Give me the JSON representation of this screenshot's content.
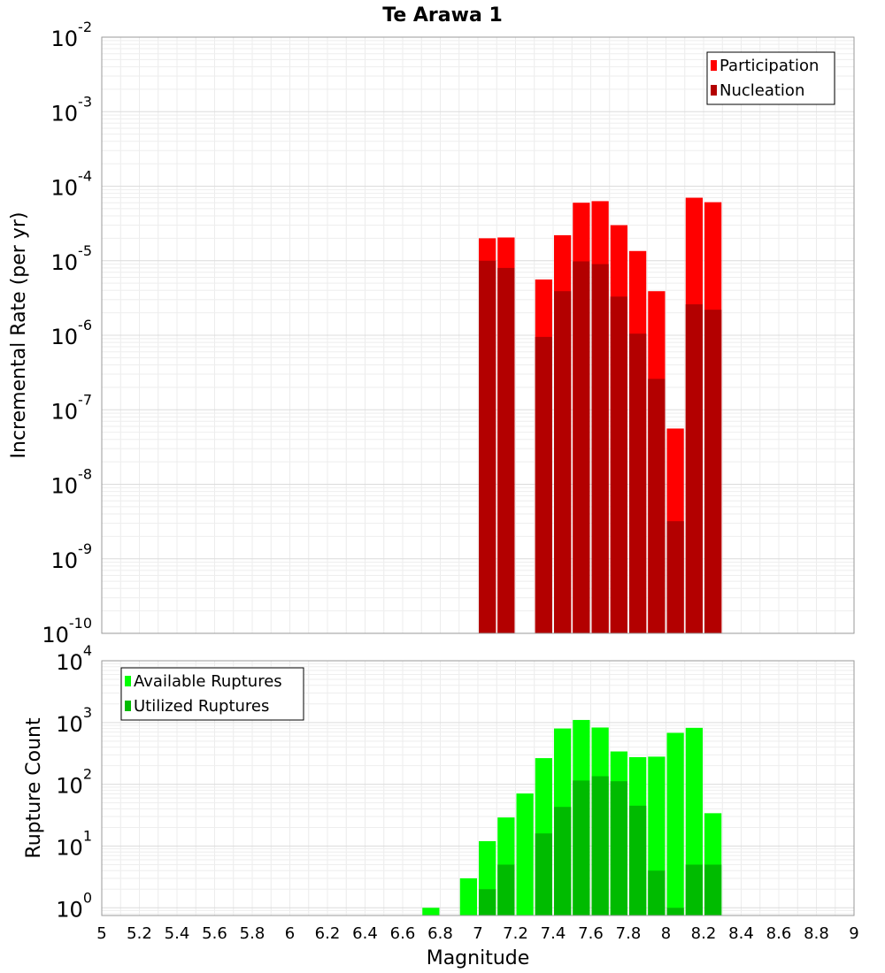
{
  "chart_data": [
    {
      "type": "bar",
      "title": "Te Arawa 1",
      "xlabel": "",
      "ylabel": "Incremental Rate (per yr)",
      "yscale": "log",
      "xlim": [
        5,
        9
      ],
      "ylim": [
        1e-10,
        0.01
      ],
      "bar_width": 0.1,
      "grid": true,
      "legend": "top-right",
      "y_tick_exponents": [
        -10,
        -9,
        -8,
        -7,
        -6,
        -5,
        -4,
        -3,
        -2
      ],
      "series": [
        {
          "name": "Participation",
          "color": "#ff0000",
          "x": [
            7.05,
            7.15,
            7.35,
            7.45,
            7.55,
            7.65,
            7.75,
            7.85,
            7.95,
            8.05,
            8.15,
            8.25
          ],
          "values": [
            2e-05,
            2.05e-05,
            5.6e-06,
            2.2e-05,
            6e-05,
            6.3e-05,
            3e-05,
            1.35e-05,
            3.9e-06,
            5.6e-08,
            7e-05,
            6.1e-05
          ]
        },
        {
          "name": "Nucleation",
          "color": "#b30000",
          "x": [
            7.05,
            7.15,
            7.35,
            7.45,
            7.55,
            7.65,
            7.75,
            7.85,
            7.95,
            8.05,
            8.15,
            8.25
          ],
          "values": [
            1e-05,
            8e-06,
            9.5e-07,
            3.9e-06,
            9.8e-06,
            9e-06,
            3.3e-06,
            1.05e-06,
            2.6e-07,
            3.2e-09,
            2.6e-06,
            2.2e-06
          ]
        }
      ]
    },
    {
      "type": "bar",
      "title": "",
      "xlabel": "Magnitude",
      "ylabel": "Rupture Count",
      "yscale": "log",
      "xlim": [
        5,
        9
      ],
      "ylim": [
        0.75,
        10000
      ],
      "bar_width": 0.1,
      "grid": true,
      "legend": "top-left",
      "x_ticks": [
        "5",
        "5.2",
        "5.4",
        "5.6",
        "5.8",
        "6",
        "6.2",
        "6.4",
        "6.6",
        "6.8",
        "7",
        "7.2",
        "7.4",
        "7.6",
        "7.8",
        "8",
        "8.2",
        "8.4",
        "8.6",
        "8.8",
        "9"
      ],
      "y_tick_exponents": [
        0,
        1,
        2,
        3,
        4
      ],
      "series": [
        {
          "name": "Available Ruptures",
          "color": "#00ff00",
          "x": [
            6.75,
            6.95,
            7.05,
            7.15,
            7.25,
            7.35,
            7.45,
            7.55,
            7.65,
            7.75,
            7.85,
            7.95,
            8.05,
            8.15,
            8.25
          ],
          "values": [
            1,
            3,
            12,
            29,
            71,
            265,
            800,
            1100,
            830,
            340,
            275,
            280,
            680,
            820,
            34
          ]
        },
        {
          "name": "Utilized Ruptures",
          "color": "#00bb00",
          "x": [
            7.05,
            7.15,
            7.35,
            7.45,
            7.55,
            7.65,
            7.75,
            7.85,
            7.95,
            8.05,
            8.15,
            8.25
          ],
          "values": [
            2,
            5,
            16,
            43,
            115,
            135,
            112,
            45,
            4,
            1,
            5,
            5
          ]
        }
      ]
    }
  ]
}
